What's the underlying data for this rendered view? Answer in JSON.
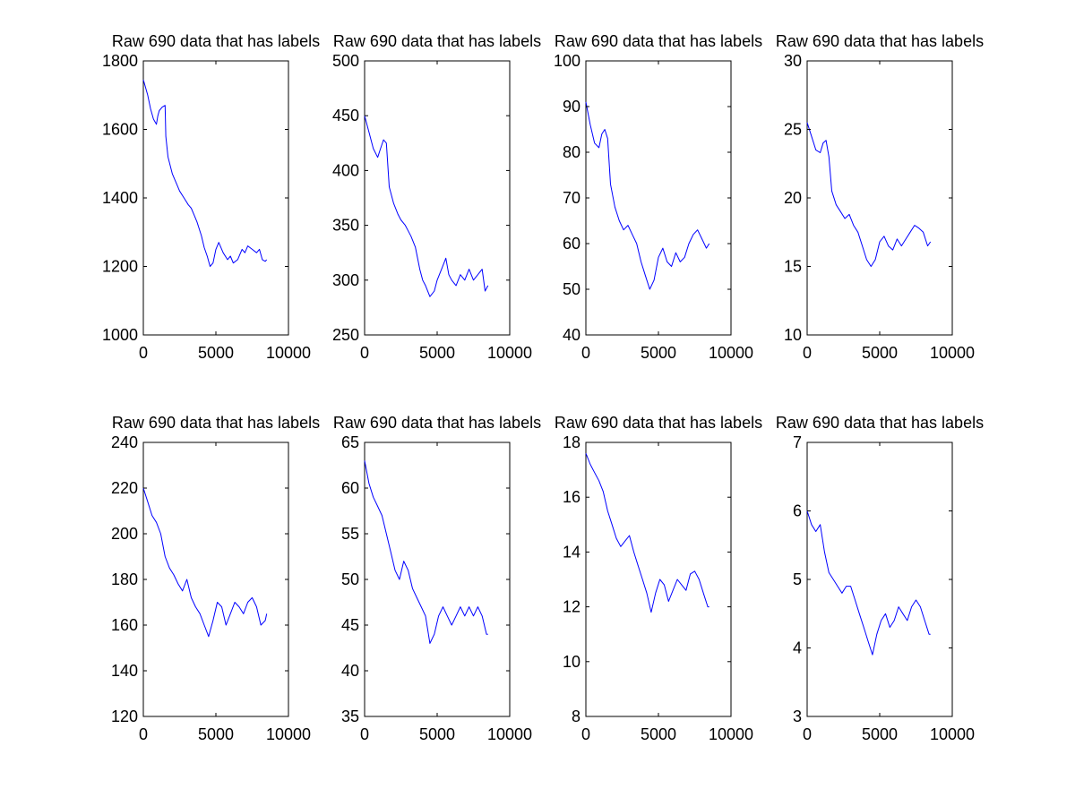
{
  "chart_data": [
    {
      "type": "line",
      "title": "Raw 690 data that has labels",
      "xlim": [
        0,
        10000
      ],
      "ylim": [
        1000,
        1800
      ],
      "xticks": [
        0,
        5000,
        10000
      ],
      "xtick_labels": [
        "0",
        "5000",
        "10000"
      ],
      "yticks": [
        1000,
        1200,
        1400,
        1600,
        1800
      ],
      "ytick_labels": [
        "1000",
        "1200",
        "1400",
        "1600",
        "1800"
      ],
      "grid": false,
      "color": "#0000ff",
      "series": [
        {
          "x": [
            0,
            300,
            500,
            700,
            900,
            1000,
            1100,
            1300,
            1500,
            1550,
            1700,
            2000,
            2300,
            2500,
            2800,
            3100,
            3300,
            3500,
            3700,
            4000,
            4200,
            4400,
            4600,
            4800,
            5000,
            5200,
            5500,
            5800,
            6000,
            6200,
            6500,
            6800,
            7000,
            7200,
            7500,
            7800,
            8000,
            8200,
            8400,
            8500
          ],
          "y": [
            1745,
            1700,
            1660,
            1630,
            1615,
            1640,
            1655,
            1665,
            1670,
            1580,
            1520,
            1470,
            1440,
            1420,
            1400,
            1380,
            1370,
            1350,
            1330,
            1290,
            1255,
            1230,
            1200,
            1210,
            1250,
            1270,
            1240,
            1220,
            1230,
            1210,
            1220,
            1250,
            1240,
            1260,
            1250,
            1240,
            1250,
            1220,
            1215,
            1220
          ]
        }
      ]
    },
    {
      "type": "line",
      "title": "Raw 690 data that has labels",
      "xlim": [
        0,
        10000
      ],
      "ylim": [
        250,
        500
      ],
      "xticks": [
        0,
        5000,
        10000
      ],
      "xtick_labels": [
        "0",
        "5000",
        "10000"
      ],
      "yticks": [
        250,
        300,
        350,
        400,
        450,
        500
      ],
      "ytick_labels": [
        "250",
        "300",
        "350",
        "400",
        "450",
        "500"
      ],
      "grid": false,
      "color": "#0000ff",
      "series": [
        {
          "x": [
            0,
            300,
            600,
            900,
            1100,
            1300,
            1500,
            1700,
            2000,
            2300,
            2500,
            2800,
            3000,
            3200,
            3500,
            3800,
            4000,
            4200,
            4500,
            4800,
            5000,
            5300,
            5600,
            5800,
            6000,
            6300,
            6600,
            6900,
            7200,
            7500,
            7800,
            8100,
            8300,
            8500
          ],
          "y": [
            450,
            435,
            420,
            412,
            420,
            428,
            425,
            385,
            370,
            360,
            355,
            350,
            345,
            340,
            330,
            310,
            300,
            295,
            285,
            290,
            300,
            310,
            320,
            305,
            300,
            295,
            305,
            300,
            310,
            300,
            305,
            310,
            290,
            295
          ]
        }
      ]
    },
    {
      "type": "line",
      "title": "Raw 690 data that has labels",
      "xlim": [
        0,
        10000
      ],
      "ylim": [
        40,
        100
      ],
      "xticks": [
        0,
        5000,
        10000
      ],
      "xtick_labels": [
        "0",
        "5000",
        "10000"
      ],
      "yticks": [
        40,
        50,
        60,
        70,
        80,
        90,
        100
      ],
      "ytick_labels": [
        "40",
        "50",
        "60",
        "70",
        "80",
        "90",
        "100"
      ],
      "grid": false,
      "color": "#0000ff",
      "series": [
        {
          "x": [
            0,
            300,
            600,
            900,
            1100,
            1300,
            1500,
            1700,
            2000,
            2300,
            2600,
            2900,
            3200,
            3500,
            3800,
            4100,
            4400,
            4700,
            5000,
            5300,
            5600,
            5900,
            6200,
            6500,
            6800,
            7100,
            7400,
            7700,
            8000,
            8300,
            8500
          ],
          "y": [
            91,
            86,
            82,
            81,
            84,
            85,
            83,
            73,
            68,
            65,
            63,
            64,
            62,
            60,
            56,
            53,
            50,
            52,
            57,
            59,
            56,
            55,
            58,
            56,
            57,
            60,
            62,
            63,
            61,
            59,
            60
          ]
        }
      ]
    },
    {
      "type": "line",
      "title": "Raw 690 data that has labels",
      "xlim": [
        0,
        10000
      ],
      "ylim": [
        10,
        30
      ],
      "xticks": [
        0,
        5000,
        10000
      ],
      "xtick_labels": [
        "0",
        "5000",
        "10000"
      ],
      "yticks": [
        10,
        15,
        20,
        25,
        30
      ],
      "ytick_labels": [
        "10",
        "15",
        "20",
        "25",
        "30"
      ],
      "grid": false,
      "color": "#0000ff",
      "series": [
        {
          "x": [
            0,
            300,
            600,
            900,
            1100,
            1300,
            1500,
            1700,
            2000,
            2300,
            2600,
            2900,
            3200,
            3500,
            3800,
            4100,
            4400,
            4700,
            5000,
            5300,
            5600,
            5900,
            6200,
            6500,
            6800,
            7100,
            7400,
            7700,
            8000,
            8300,
            8500
          ],
          "y": [
            25.5,
            24.5,
            23.5,
            23.3,
            24,
            24.2,
            23,
            20.5,
            19.5,
            19,
            18.5,
            18.8,
            18,
            17.5,
            16.5,
            15.5,
            15,
            15.5,
            16.8,
            17.2,
            16.5,
            16.2,
            17,
            16.5,
            17,
            17.5,
            18,
            17.8,
            17.5,
            16.5,
            16.8
          ]
        }
      ]
    },
    {
      "type": "line",
      "title": "Raw 690 data that has labels",
      "xlim": [
        0,
        10000
      ],
      "ylim": [
        120,
        240
      ],
      "xticks": [
        0,
        5000,
        10000
      ],
      "xtick_labels": [
        "0",
        "5000",
        "10000"
      ],
      "yticks": [
        120,
        140,
        160,
        180,
        200,
        220,
        240
      ],
      "ytick_labels": [
        "120",
        "140",
        "160",
        "180",
        "200",
        "220",
        "240"
      ],
      "grid": false,
      "color": "#0000ff",
      "series": [
        {
          "x": [
            0,
            300,
            600,
            900,
            1200,
            1500,
            1800,
            2100,
            2400,
            2700,
            3000,
            3300,
            3600,
            3900,
            4200,
            4500,
            4800,
            5100,
            5400,
            5700,
            6000,
            6300,
            6600,
            6900,
            7200,
            7500,
            7800,
            8100,
            8400,
            8500
          ],
          "y": [
            220,
            214,
            208,
            205,
            200,
            190,
            185,
            182,
            178,
            175,
            180,
            172,
            168,
            165,
            160,
            155,
            162,
            170,
            168,
            160,
            165,
            170,
            168,
            165,
            170,
            172,
            168,
            160,
            162,
            165
          ]
        }
      ]
    },
    {
      "type": "line",
      "title": "Raw 690 data that has labels",
      "xlim": [
        0,
        10000
      ],
      "ylim": [
        35,
        65
      ],
      "xticks": [
        0,
        5000,
        10000
      ],
      "xtick_labels": [
        "0",
        "5000",
        "10000"
      ],
      "yticks": [
        35,
        40,
        45,
        50,
        55,
        60,
        65
      ],
      "ytick_labels": [
        "35",
        "40",
        "45",
        "50",
        "55",
        "60",
        "65"
      ],
      "grid": false,
      "color": "#0000ff",
      "series": [
        {
          "x": [
            0,
            300,
            600,
            900,
            1200,
            1500,
            1800,
            2100,
            2400,
            2700,
            3000,
            3300,
            3600,
            3900,
            4200,
            4500,
            4800,
            5100,
            5400,
            5700,
            6000,
            6300,
            6600,
            6900,
            7200,
            7500,
            7800,
            8100,
            8400,
            8500
          ],
          "y": [
            63,
            60.5,
            59,
            58,
            57,
            55,
            53,
            51,
            50,
            52,
            51,
            49,
            48,
            47,
            46,
            43,
            44,
            46,
            47,
            46,
            45,
            46,
            47,
            46,
            47,
            46,
            47,
            46,
            44,
            44
          ]
        }
      ]
    },
    {
      "type": "line",
      "title": "Raw 690 data that has labels",
      "xlim": [
        0,
        10000
      ],
      "ylim": [
        8,
        18
      ],
      "xticks": [
        0,
        5000,
        10000
      ],
      "xtick_labels": [
        "0",
        "5000",
        "10000"
      ],
      "yticks": [
        8,
        10,
        12,
        14,
        16,
        18
      ],
      "ytick_labels": [
        "8",
        "10",
        "12",
        "14",
        "16",
        "18"
      ],
      "grid": false,
      "color": "#0000ff",
      "series": [
        {
          "x": [
            0,
            300,
            600,
            900,
            1200,
            1500,
            1800,
            2100,
            2400,
            2700,
            3000,
            3300,
            3600,
            3900,
            4200,
            4500,
            4800,
            5100,
            5400,
            5700,
            6000,
            6300,
            6600,
            6900,
            7200,
            7500,
            7800,
            8100,
            8400,
            8500
          ],
          "y": [
            17.6,
            17.2,
            16.9,
            16.6,
            16.2,
            15.5,
            15,
            14.5,
            14.2,
            14.4,
            14.6,
            14,
            13.5,
            13,
            12.5,
            11.8,
            12.5,
            13,
            12.8,
            12.2,
            12.6,
            13,
            12.8,
            12.6,
            13.2,
            13.3,
            13,
            12.5,
            12,
            12
          ]
        }
      ]
    },
    {
      "type": "line",
      "title": "Raw 690 data that has labels",
      "xlim": [
        0,
        10000
      ],
      "ylim": [
        3,
        7
      ],
      "xticks": [
        0,
        5000,
        10000
      ],
      "xtick_labels": [
        "0",
        "5000",
        "10000"
      ],
      "yticks": [
        3,
        4,
        5,
        6,
        7
      ],
      "ytick_labels": [
        "3",
        "4",
        "5",
        "6",
        "7"
      ],
      "grid": false,
      "color": "#0000ff",
      "series": [
        {
          "x": [
            0,
            300,
            600,
            900,
            1200,
            1500,
            1800,
            2100,
            2400,
            2700,
            3000,
            3300,
            3600,
            3900,
            4200,
            4500,
            4800,
            5100,
            5400,
            5700,
            6000,
            6300,
            6600,
            6900,
            7200,
            7500,
            7800,
            8100,
            8400,
            8500
          ],
          "y": [
            6.0,
            5.8,
            5.7,
            5.8,
            5.4,
            5.1,
            5.0,
            4.9,
            4.8,
            4.9,
            4.9,
            4.7,
            4.5,
            4.3,
            4.1,
            3.9,
            4.2,
            4.4,
            4.5,
            4.3,
            4.4,
            4.6,
            4.5,
            4.4,
            4.6,
            4.7,
            4.6,
            4.4,
            4.2,
            4.2
          ]
        }
      ]
    }
  ]
}
